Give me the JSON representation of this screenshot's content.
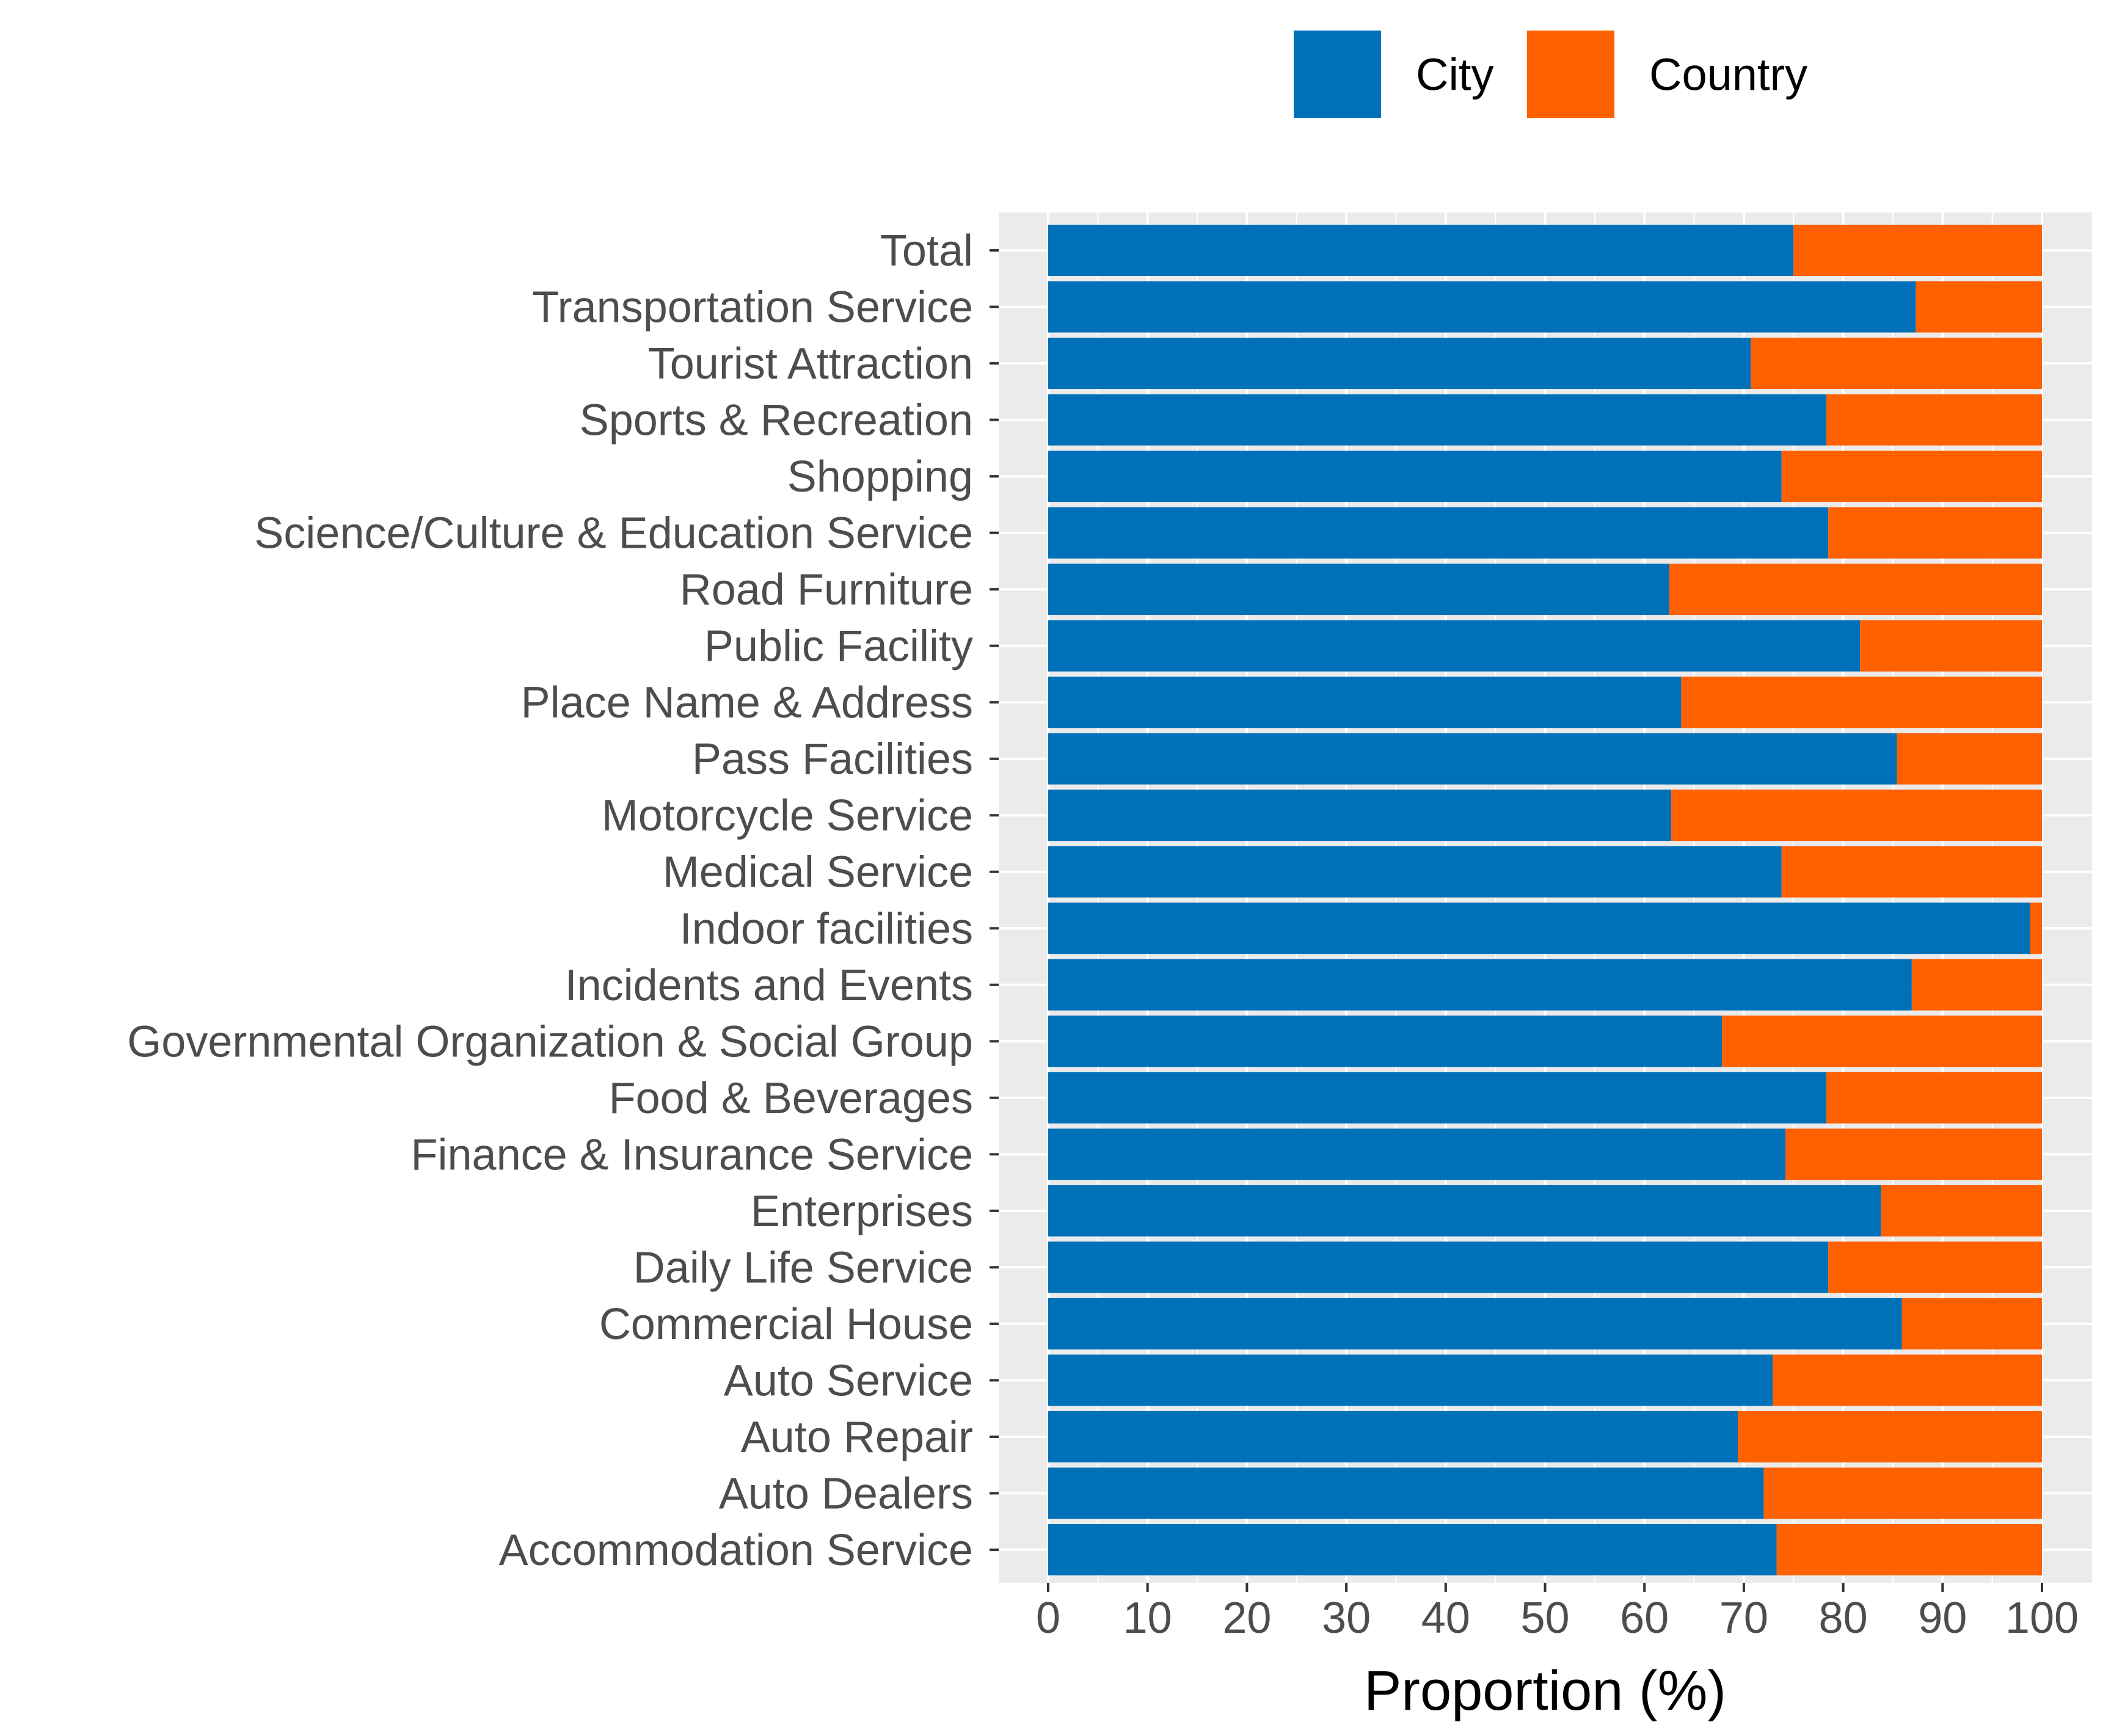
{
  "chart_data": {
    "type": "bar",
    "orientation": "horizontal",
    "stacked": true,
    "xlabel": "Proportion (%)",
    "ylabel": "",
    "xlim": [
      0,
      100
    ],
    "x_ticks": [
      "0",
      "10",
      "20",
      "30",
      "40",
      "50",
      "60",
      "70",
      "80",
      "90",
      "100"
    ],
    "grid": true,
    "legend_position": "top",
    "categories": [
      "Total",
      "Transportation Service",
      "Tourist Attraction",
      "Sports & Recreation",
      "Shopping",
      "Science/Culture & Education Service",
      "Road Furniture",
      "Public Facility",
      "Place Name & Address",
      "Pass Facilities",
      "Motorcycle Service",
      "Medical Service",
      "Indoor facilities",
      "Incidents and Events",
      "Governmental Organization & Social Group",
      "Food & Beverages",
      "Finance & Insurance Service",
      "Enterprises",
      "Daily Life Service",
      "Commercial House",
      "Auto Service",
      "Auto Repair",
      "Auto Dealers",
      "Accommodation Service"
    ],
    "series": [
      {
        "name": "City",
        "color": "#0071B8",
        "values": [
          75.0,
          87.3,
          70.7,
          78.3,
          73.8,
          78.5,
          62.5,
          81.7,
          63.7,
          85.4,
          62.7,
          73.8,
          98.8,
          86.9,
          67.8,
          78.3,
          74.2,
          83.8,
          78.5,
          85.9,
          72.9,
          69.4,
          72.0,
          73.3
        ]
      },
      {
        "name": "Country",
        "color": "#FF6000",
        "values": [
          25.0,
          12.7,
          29.3,
          21.7,
          26.2,
          21.5,
          37.5,
          18.3,
          36.3,
          14.6,
          37.3,
          26.2,
          1.2,
          13.1,
          32.2,
          21.7,
          25.8,
          16.2,
          21.5,
          14.1,
          27.1,
          30.6,
          28.0,
          26.7
        ]
      }
    ]
  }
}
